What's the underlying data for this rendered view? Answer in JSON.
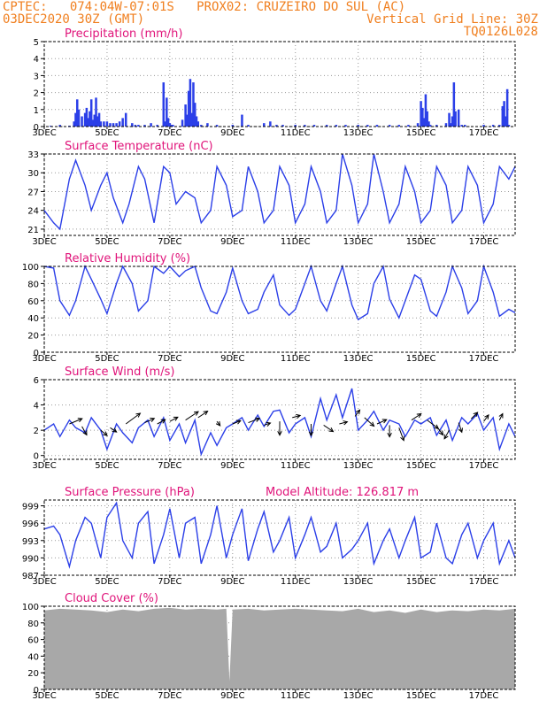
{
  "header": {
    "line1": "CPTEC:   074:04W-07:01S   PROX02: CRUZEIRO DO SUL (AC)",
    "line2_left": "03DEC2020 30Z (GMT)",
    "line2_right": "Vertical Grid Line: 30Z",
    "line3_right": "TQ0126L028"
  },
  "x_axis": {
    "tick_labels": [
      "3DEC",
      "5DEC",
      "7DEC",
      "9DEC",
      "11DEC",
      "13DEC",
      "15DEC",
      "17DEC"
    ],
    "tick_days": [
      0,
      2,
      4,
      6,
      8,
      10,
      12,
      14
    ],
    "range_days": [
      0,
      15.0
    ]
  },
  "colors": {
    "line": "#2b3fe8",
    "title": "#e0147a",
    "header": "#f07f1f",
    "cloud": "#a8a8a8"
  },
  "chart_data": [
    {
      "type": "bar",
      "title": "Precipitation (mm/h)",
      "ylim": [
        0,
        5
      ],
      "yticks": [
        0,
        1,
        2,
        3,
        4,
        5
      ],
      "x_unit": "days since 3DEC 06Z",
      "x": [
        0.2,
        0.5,
        0.8,
        0.95,
        1.0,
        1.05,
        1.1,
        1.2,
        1.3,
        1.35,
        1.4,
        1.45,
        1.5,
        1.55,
        1.6,
        1.65,
        1.7,
        1.75,
        1.8,
        1.9,
        2.0,
        2.1,
        2.2,
        2.3,
        2.4,
        2.5,
        2.6,
        2.8,
        2.9,
        3.0,
        3.2,
        3.4,
        3.6,
        3.8,
        3.85,
        3.9,
        3.95,
        4.0,
        4.05,
        4.1,
        4.4,
        4.5,
        4.55,
        4.6,
        4.65,
        4.7,
        4.75,
        4.8,
        4.85,
        4.9,
        5.0,
        5.2,
        5.5,
        6.0,
        6.3,
        6.5,
        7.0,
        7.2,
        7.4,
        7.6,
        8.0,
        8.3,
        8.6,
        9.0,
        9.3,
        9.6,
        10.0,
        10.3,
        10.6,
        11.0,
        11.3,
        11.6,
        11.9,
        12.0,
        12.05,
        12.1,
        12.15,
        12.2,
        12.25,
        12.3,
        12.5,
        12.8,
        12.9,
        12.95,
        13.0,
        13.05,
        13.1,
        13.2,
        13.3,
        13.4,
        14.0,
        14.3,
        14.5,
        14.6,
        14.65,
        14.7,
        14.75,
        14.8
      ],
      "values": [
        0.05,
        0.1,
        0.05,
        0.3,
        0.8,
        1.6,
        1.0,
        0.6,
        0.8,
        1.1,
        0.5,
        0.9,
        1.6,
        0.4,
        0.7,
        1.7,
        0.6,
        0.8,
        0.3,
        0.3,
        0.3,
        0.2,
        0.2,
        0.2,
        0.3,
        0.5,
        0.8,
        0.2,
        0.1,
        0.1,
        0.1,
        0.2,
        0.1,
        2.6,
        0.3,
        1.7,
        0.5,
        0.2,
        0.1,
        0.1,
        0.4,
        1.3,
        0.7,
        2.1,
        2.8,
        0.8,
        2.6,
        1.4,
        0.6,
        0.3,
        0.1,
        0.2,
        0.1,
        0.1,
        0.7,
        0.1,
        0.2,
        0.3,
        0.1,
        0.1,
        0.1,
        0.1,
        0.1,
        0.1,
        0.1,
        0.1,
        0.1,
        0.1,
        0.1,
        0.1,
        0.1,
        0.1,
        0.2,
        1.5,
        1.1,
        0.5,
        1.9,
        0.9,
        0.3,
        0.1,
        0.1,
        0.2,
        0.8,
        0.2,
        0.6,
        2.6,
        0.9,
        1.0,
        0.1,
        0.1,
        0.1,
        0.1,
        0.1,
        1.2,
        1.5,
        0.6,
        2.2,
        0.1
      ]
    },
    {
      "type": "line",
      "title": "Surface Temperature (nC)",
      "ylim": [
        20,
        33
      ],
      "yticks": [
        21,
        24,
        27,
        30,
        33
      ],
      "x_unit": "days since 3DEC 06Z",
      "x": [
        0,
        0.3,
        0.5,
        0.8,
        1.0,
        1.3,
        1.5,
        1.8,
        2.0,
        2.2,
        2.5,
        2.7,
        3.0,
        3.2,
        3.5,
        3.8,
        4.0,
        4.2,
        4.5,
        4.8,
        5.0,
        5.3,
        5.5,
        5.8,
        6.0,
        6.3,
        6.5,
        6.8,
        7.0,
        7.3,
        7.5,
        7.8,
        8.0,
        8.3,
        8.5,
        8.8,
        9.0,
        9.3,
        9.5,
        9.8,
        10.0,
        10.3,
        10.5,
        10.8,
        11.0,
        11.3,
        11.5,
        11.8,
        12.0,
        12.3,
        12.5,
        12.8,
        13.0,
        13.3,
        13.5,
        13.8,
        14.0,
        14.3,
        14.5,
        14.8,
        15.0
      ],
      "values": [
        24,
        22,
        21,
        29,
        32,
        28,
        24,
        28,
        30,
        26,
        22,
        25,
        31,
        29,
        22,
        31,
        30,
        25,
        27,
        26,
        22,
        24,
        31,
        28,
        23,
        24,
        31,
        27,
        22,
        24,
        31,
        28,
        22,
        25,
        31,
        27,
        22,
        24,
        33,
        28,
        22,
        25,
        33,
        27,
        22,
        25,
        31,
        27,
        22,
        24,
        31,
        28,
        22,
        24,
        31,
        28,
        22,
        25,
        31,
        29,
        31
      ]
    },
    {
      "type": "line",
      "title": "Relative Humidity (%)",
      "ylim": [
        0,
        100
      ],
      "yticks": [
        0,
        20,
        40,
        60,
        80,
        100
      ],
      "x_unit": "days since 3DEC 06Z",
      "x": [
        0,
        0.3,
        0.5,
        0.8,
        1.0,
        1.3,
        1.5,
        1.8,
        2.0,
        2.3,
        2.5,
        2.8,
        3.0,
        3.3,
        3.5,
        3.8,
        4.0,
        4.3,
        4.5,
        4.8,
        5.0,
        5.3,
        5.5,
        5.8,
        6.0,
        6.3,
        6.5,
        6.8,
        7.0,
        7.3,
        7.5,
        7.8,
        8.0,
        8.3,
        8.5,
        8.8,
        9.0,
        9.3,
        9.5,
        9.8,
        10.0,
        10.3,
        10.5,
        10.8,
        11.0,
        11.3,
        11.5,
        11.8,
        12.0,
        12.3,
        12.5,
        12.8,
        13.0,
        13.3,
        13.5,
        13.8,
        14.0,
        14.3,
        14.5,
        14.8,
        15.0
      ],
      "values": [
        100,
        98,
        60,
        43,
        60,
        100,
        85,
        62,
        45,
        80,
        100,
        80,
        48,
        60,
        100,
        92,
        100,
        88,
        95,
        100,
        75,
        48,
        45,
        70,
        98,
        60,
        45,
        50,
        70,
        90,
        55,
        43,
        50,
        80,
        100,
        60,
        48,
        80,
        100,
        55,
        38,
        45,
        80,
        100,
        62,
        40,
        60,
        90,
        85,
        48,
        42,
        70,
        100,
        75,
        45,
        60,
        100,
        70,
        42,
        50,
        46
      ]
    },
    {
      "type": "line",
      "title": "Surface Wind (m/s)",
      "ylim": [
        -0.3,
        6
      ],
      "yticks": [
        0,
        2,
        4,
        6
      ],
      "x_unit": "days since 3DEC 06Z",
      "x": [
        0,
        0.3,
        0.5,
        0.8,
        1.0,
        1.3,
        1.5,
        1.8,
        2.0,
        2.3,
        2.5,
        2.8,
        3.0,
        3.3,
        3.5,
        3.8,
        4.0,
        4.3,
        4.5,
        4.8,
        5.0,
        5.3,
        5.5,
        5.8,
        6.0,
        6.3,
        6.5,
        6.8,
        7.0,
        7.3,
        7.5,
        7.8,
        8.0,
        8.3,
        8.5,
        8.8,
        9.0,
        9.3,
        9.5,
        9.8,
        10.0,
        10.3,
        10.5,
        10.8,
        11.0,
        11.3,
        11.5,
        11.8,
        12.0,
        12.3,
        12.5,
        12.8,
        13.0,
        13.3,
        13.5,
        13.8,
        14.0,
        14.3,
        14.5,
        14.8,
        15.0
      ],
      "values": [
        2.0,
        2.5,
        1.5,
        2.8,
        2.2,
        1.8,
        3.0,
        2.0,
        0.5,
        2.5,
        1.8,
        1.0,
        2.2,
        2.8,
        1.5,
        3.0,
        1.2,
        2.5,
        1.0,
        2.8,
        0.1,
        1.8,
        0.8,
        2.2,
        2.5,
        3.0,
        2.0,
        3.2,
        2.3,
        3.5,
        3.6,
        1.8,
        2.5,
        3.0,
        1.5,
        4.5,
        2.8,
        4.8,
        3.0,
        5.3,
        2.0,
        2.8,
        3.5,
        2.0,
        2.8,
        2.5,
        1.5,
        2.8,
        2.5,
        3.0,
        1.6,
        2.8,
        1.2,
        3.0,
        2.5,
        3.3,
        2.0,
        3.0,
        0.5,
        2.5,
        1.5
      ]
    },
    {
      "type": "line",
      "title": "Surface Pressure (hPa)",
      "annotation": "Model Altitude: 126.817 m",
      "ylim": [
        987,
        1000
      ],
      "yticks": [
        987,
        990,
        993,
        996,
        999
      ],
      "x_unit": "days since 3DEC 06Z",
      "x": [
        0,
        0.3,
        0.5,
        0.8,
        1.0,
        1.3,
        1.5,
        1.8,
        2.0,
        2.3,
        2.5,
        2.8,
        3.0,
        3.3,
        3.5,
        3.8,
        4.0,
        4.3,
        4.5,
        4.8,
        5.0,
        5.3,
        5.5,
        5.8,
        6.0,
        6.3,
        6.5,
        6.8,
        7.0,
        7.3,
        7.5,
        7.8,
        8.0,
        8.3,
        8.5,
        8.8,
        9.0,
        9.3,
        9.5,
        9.8,
        10.0,
        10.3,
        10.5,
        10.8,
        11.0,
        11.3,
        11.5,
        11.8,
        12.0,
        12.3,
        12.5,
        12.8,
        13.0,
        13.3,
        13.5,
        13.8,
        14.0,
        14.3,
        14.5,
        14.8,
        15.0
      ],
      "values": [
        995,
        995.5,
        994,
        988.5,
        993,
        997,
        996,
        990,
        997,
        999.5,
        993,
        990,
        996,
        998,
        989,
        994,
        998.5,
        990,
        996,
        997,
        989,
        994,
        999,
        990,
        994,
        998.5,
        989.5,
        995,
        998,
        991,
        993,
        997,
        990,
        994,
        997,
        991,
        992,
        996,
        990,
        991.5,
        993,
        996,
        989,
        993,
        995,
        990,
        993,
        997,
        990,
        991,
        996,
        990,
        989,
        994,
        996,
        990,
        993,
        996,
        989,
        993,
        990
      ]
    },
    {
      "type": "area",
      "title": "Cloud Cover (%)",
      "ylim": [
        0,
        100
      ],
      "yticks": [
        0,
        20,
        40,
        60,
        80,
        100
      ],
      "x_unit": "days since 3DEC 06Z",
      "x": [
        0,
        0.5,
        1.0,
        1.5,
        2.0,
        2.5,
        3.0,
        3.5,
        4.0,
        4.5,
        5.0,
        5.5,
        5.8,
        5.9,
        6.0,
        6.5,
        7.0,
        7.5,
        8.0,
        8.5,
        9.0,
        9.5,
        10.0,
        10.5,
        11.0,
        11.5,
        12.0,
        12.5,
        13.0,
        13.5,
        14.0,
        14.5,
        15.0
      ],
      "values": [
        95,
        97,
        96,
        95,
        93,
        96,
        94,
        97,
        98,
        96,
        97,
        96,
        97,
        10,
        96,
        97,
        95,
        96,
        97,
        96,
        95,
        94,
        97,
        93,
        95,
        92,
        96,
        93,
        95,
        94,
        96,
        95,
        97
      ]
    }
  ],
  "wind_arrows": {
    "x": [
      0.8,
      1.2,
      1.8,
      2.1,
      2.6,
      3.2,
      3.6,
      4.0,
      4.5,
      4.9,
      5.5,
      6.0,
      6.5,
      7.0,
      7.5,
      7.9,
      8.5,
      8.9,
      9.4,
      9.9,
      10.2,
      10.6,
      11.0,
      11.3,
      11.7,
      12.2,
      12.5,
      12.9,
      13.2,
      13.6,
      14.0,
      14.5
    ],
    "base": [
      2.5,
      2.3,
      2.0,
      2.2,
      2.5,
      2.6,
      2.5,
      2.7,
      2.8,
      3.0,
      2.7,
      2.5,
      2.6,
      2.4,
      2.7,
      3.0,
      2.5,
      2.4,
      2.5,
      3.1,
      3.0,
      2.5,
      2.4,
      2.2,
      2.8,
      2.8,
      2.3,
      2.0,
      2.6,
      2.9,
      2.7,
      2.8
    ],
    "u": [
      0.8,
      0.3,
      0.4,
      0.4,
      0.9,
      0.6,
      0.5,
      0.5,
      0.8,
      0.6,
      0.2,
      0.5,
      0.7,
      0.4,
      0.0,
      0.5,
      0.0,
      0.6,
      0.5,
      0.3,
      0.6,
      0.6,
      0.0,
      0.3,
      0.6,
      0.7,
      0.4,
      -0.3,
      0.2,
      0.4,
      0.3,
      0.2
    ],
    "v": [
      0.5,
      -0.8,
      -0.5,
      -0.4,
      1.0,
      0.4,
      0.4,
      0.4,
      0.8,
      0.6,
      -0.4,
      0.3,
      0.4,
      0.2,
      -1.3,
      0.2,
      -1.1,
      -0.6,
      0.2,
      0.6,
      -0.8,
      0.4,
      -1.1,
      -1.2,
      0.6,
      -0.8,
      -0.8,
      -0.8,
      -0.9,
      0.6,
      0.6,
      0.6
    ]
  }
}
